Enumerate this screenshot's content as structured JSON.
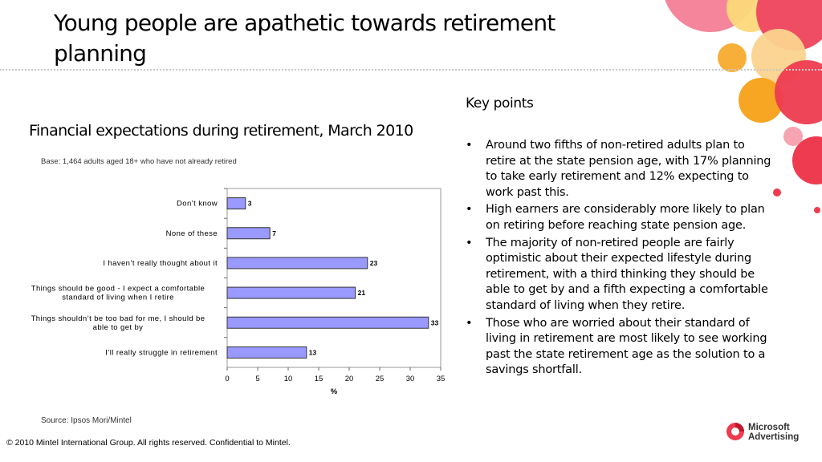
{
  "slide": {
    "title": "Young people are apathetic towards retirement planning",
    "chart_heading": "Financial expectations during retirement, March 2010",
    "base_note": "Base: 1,464 adults aged 18+ who have not already retired",
    "source_note": "Source: Ipsos Mori/Mintel",
    "copyright": "© 2010 Mintel International Group. All rights reserved. Confidential to Mintel."
  },
  "key_points": {
    "title": "Key points",
    "bullets": [
      "Around two fifths of non-retired adults plan to retire at the state pension age, with 17% planning to take early retirement and 12% expecting to work past this.",
      "High earners are considerably more likely to plan on retiring before reaching state pension age.",
      "The majority of non-retired people are fairly optimistic about their expected lifestyle during retirement, with a third thinking they should be able to get by and a fifth expecting a comfortable standard of living when they retire.",
      "Those who are worried about their standard of living in retirement are most likely to see working past the state retirement age as the solution to a savings shortfall."
    ]
  },
  "logo": {
    "line1": "Microsoft",
    "line2": "Advertising"
  },
  "colors": {
    "bar_fill": "#9999ff",
    "bar_stroke": "#333333",
    "accent_red": "#ee3b4f",
    "accent_orange": "#f6a623"
  },
  "chart_data": {
    "type": "bar",
    "orientation": "horizontal",
    "categories": [
      "Don’t know",
      "None of these",
      "I haven’t really thought about it",
      "Things should be good - I expect a comfortable standard of living when I retire",
      "Things shouldn’t be too bad for me, I should be able to get by",
      "I’ll really struggle in retirement"
    ],
    "category_lines": [
      [
        "Don’t know"
      ],
      [
        "None of these"
      ],
      [
        "I haven’t really thought about it"
      ],
      [
        "Things should be good - I expect a comfortable",
        "standard of living when I retire"
      ],
      [
        "Things shouldn’t be too bad for me, I should be",
        "able to get by"
      ],
      [
        "I’ll really struggle in retirement"
      ]
    ],
    "values": [
      3,
      7,
      23,
      21,
      33,
      13
    ],
    "xlabel": "%",
    "xlim": [
      0,
      35
    ],
    "xticks": [
      0,
      5,
      10,
      15,
      20,
      25,
      30,
      35
    ],
    "grid": false,
    "legend": "none"
  }
}
